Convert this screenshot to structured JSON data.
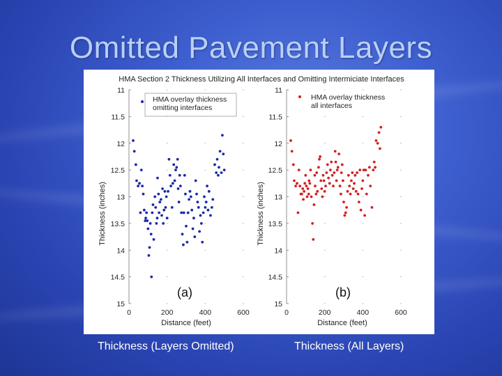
{
  "slide": {
    "title": "Omitted Pavement Layers",
    "caption_left": "Thickness (Layers Omitted)",
    "caption_right": "Thickness (All Layers)"
  },
  "colors": {
    "series_a": "#1a2aa8",
    "series_b": "#d42020"
  },
  "chart_data": [
    {
      "type": "scatter",
      "title": "HMA Section 2 Thickness Utilizing All Interfaces and Omitting Intermiciate Interfaces",
      "panel_label": "(a)",
      "xlabel": "Distance (feet)",
      "ylabel": "Thickness (inches)",
      "xlim": [
        0,
        600
      ],
      "ylim": [
        11,
        15
      ],
      "y_inverted": true,
      "xticks": [
        "0",
        "200",
        "400",
        "600"
      ],
      "yticks": [
        "11",
        "11.5",
        "12",
        "12.5",
        "13",
        "13.5",
        "14",
        "14.5",
        "15"
      ],
      "legend_position": "top-right",
      "series": [
        {
          "name": "HMA overlay thickness omitting interfaces",
          "points": [
            [
              22,
              11.95
            ],
            [
              28,
              12.15
            ],
            [
              36,
              12.4
            ],
            [
              40,
              12.7
            ],
            [
              48,
              12.8
            ],
            [
              55,
              12.75
            ],
            [
              60,
              13.3
            ],
            [
              65,
              12.5
            ],
            [
              70,
              12.8
            ],
            [
              75,
              12.95
            ],
            [
              80,
              13.25
            ],
            [
              85,
              13.45
            ],
            [
              88,
              13.4
            ],
            [
              92,
              13.3
            ],
            [
              96,
              13.45
            ],
            [
              100,
              13.6
            ],
            [
              104,
              14.1
            ],
            [
              108,
              13.95
            ],
            [
              112,
              13.5
            ],
            [
              116,
              13.7
            ],
            [
              118,
              14.5
            ],
            [
              122,
              13.3
            ],
            [
              126,
              13.15
            ],
            [
              130,
              13.8
            ],
            [
              136,
              13.0
            ],
            [
              140,
              13.2
            ],
            [
              144,
              13.5
            ],
            [
              148,
              13.4
            ],
            [
              150,
              12.65
            ],
            [
              155,
              12.95
            ],
            [
              158,
              13.3
            ],
            [
              162,
              13.1
            ],
            [
              168,
              13.05
            ],
            [
              172,
              13.35
            ],
            [
              176,
              12.85
            ],
            [
              180,
              13.5
            ],
            [
              184,
              13.25
            ],
            [
              188,
              12.9
            ],
            [
              192,
              13.2
            ],
            [
              196,
              13.0
            ],
            [
              200,
              13.4
            ],
            [
              205,
              12.9
            ],
            [
              210,
              12.3
            ],
            [
              215,
              12.6
            ],
            [
              220,
              12.8
            ],
            [
              226,
              13.2
            ],
            [
              230,
              12.75
            ],
            [
              235,
              12.4
            ],
            [
              240,
              12.7
            ],
            [
              245,
              12.5
            ],
            [
              250,
              12.45
            ],
            [
              255,
              12.3
            ],
            [
              258,
              12.85
            ],
            [
              262,
              13.1
            ],
            [
              266,
              12.6
            ],
            [
              270,
              12.8
            ],
            [
              275,
              13.3
            ],
            [
              280,
              13.7
            ],
            [
              285,
              13.9
            ],
            [
              288,
              13.3
            ],
            [
              292,
              12.6
            ],
            [
              296,
              12.95
            ],
            [
              300,
              13.55
            ],
            [
              305,
              13.85
            ],
            [
              310,
              13.3
            ],
            [
              315,
              13.05
            ],
            [
              320,
              12.9
            ],
            [
              325,
              13.0
            ],
            [
              330,
              13.25
            ],
            [
              335,
              13.6
            ],
            [
              340,
              13.4
            ],
            [
              345,
              13.75
            ],
            [
              350,
              12.7
            ],
            [
              355,
              12.95
            ],
            [
              360,
              13.1
            ],
            [
              365,
              13.2
            ],
            [
              370,
              13.65
            ],
            [
              375,
              13.35
            ],
            [
              380,
              13.5
            ],
            [
              385,
              13.85
            ],
            [
              390,
              13.3
            ],
            [
              395,
              13.0
            ],
            [
              400,
              13.2
            ],
            [
              405,
              13.1
            ],
            [
              410,
              12.8
            ],
            [
              415,
              13.25
            ],
            [
              420,
              12.9
            ],
            [
              428,
              13.35
            ],
            [
              435,
              13.2
            ],
            [
              440,
              13.05
            ],
            [
              450,
              12.4
            ],
            [
              458,
              12.55
            ],
            [
              463,
              12.3
            ],
            [
              468,
              12.6
            ],
            [
              472,
              12.45
            ],
            [
              478,
              12.15
            ],
            [
              485,
              12.55
            ],
            [
              490,
              11.85
            ],
            [
              495,
              12.2
            ],
            [
              500,
              12.5
            ]
          ]
        }
      ]
    },
    {
      "type": "scatter",
      "panel_label": "(b)",
      "xlabel": "Distance (feet)",
      "ylabel": "Thickness (inches)",
      "xlim": [
        0,
        600
      ],
      "ylim": [
        11,
        15
      ],
      "y_inverted": true,
      "xticks": [
        "0",
        "200",
        "400",
        "600"
      ],
      "yticks": [
        "11",
        "11.5",
        "12",
        "12.5",
        "13",
        "13.5",
        "14",
        "14.5",
        "15"
      ],
      "legend_position": "top-right",
      "series": [
        {
          "name": "HMA overlay thickness all interfaces",
          "points": [
            [
              22,
              11.95
            ],
            [
              28,
              12.15
            ],
            [
              36,
              12.4
            ],
            [
              40,
              12.7
            ],
            [
              48,
              12.8
            ],
            [
              55,
              12.75
            ],
            [
              60,
              13.3
            ],
            [
              65,
              12.5
            ],
            [
              70,
              12.8
            ],
            [
              75,
              12.95
            ],
            [
              80,
              12.95
            ],
            [
              85,
              12.85
            ],
            [
              88,
              13.05
            ],
            [
              92,
              12.9
            ],
            [
              96,
              12.75
            ],
            [
              100,
              12.6
            ],
            [
              104,
              12.8
            ],
            [
              108,
              13.0
            ],
            [
              112,
              12.85
            ],
            [
              116,
              12.95
            ],
            [
              118,
              12.7
            ],
            [
              122,
              12.75
            ],
            [
              126,
              12.5
            ],
            [
              130,
              13.0
            ],
            [
              136,
              13.5
            ],
            [
              140,
              13.8
            ],
            [
              144,
              13.15
            ],
            [
              148,
              12.6
            ],
            [
              150,
              12.8
            ],
            [
              155,
              12.95
            ],
            [
              158,
              12.55
            ],
            [
              162,
              12.9
            ],
            [
              168,
              12.45
            ],
            [
              172,
              12.3
            ],
            [
              176,
              12.25
            ],
            [
              180,
              12.7
            ],
            [
              184,
              12.85
            ],
            [
              188,
              13.0
            ],
            [
              192,
              12.6
            ],
            [
              196,
              12.7
            ],
            [
              200,
              12.9
            ],
            [
              205,
              12.8
            ],
            [
              210,
              12.55
            ],
            [
              215,
              12.4
            ],
            [
              220,
              12.65
            ],
            [
              226,
              12.75
            ],
            [
              230,
              12.5
            ],
            [
              235,
              12.35
            ],
            [
              240,
              12.6
            ],
            [
              245,
              12.8
            ],
            [
              250,
              12.55
            ],
            [
              255,
              12.15
            ],
            [
              258,
              12.35
            ],
            [
              262,
              12.7
            ],
            [
              266,
              12.5
            ],
            [
              270,
              12.45
            ],
            [
              275,
              12.2
            ],
            [
              280,
              12.8
            ],
            [
              285,
              12.95
            ],
            [
              288,
              12.55
            ],
            [
              292,
              12.4
            ],
            [
              296,
              12.7
            ],
            [
              300,
              13.1
            ],
            [
              305,
              13.35
            ],
            [
              310,
              13.3
            ],
            [
              315,
              13.2
            ],
            [
              320,
              12.9
            ],
            [
              325,
              12.6
            ],
            [
              330,
              12.8
            ],
            [
              335,
              12.95
            ],
            [
              340,
              12.7
            ],
            [
              345,
              12.55
            ],
            [
              350,
              12.85
            ],
            [
              355,
              12.75
            ],
            [
              360,
              12.6
            ],
            [
              365,
              12.9
            ],
            [
              370,
              12.55
            ],
            [
              375,
              12.95
            ],
            [
              380,
              13.1
            ],
            [
              385,
              12.5
            ],
            [
              390,
              13.25
            ],
            [
              395,
              12.85
            ],
            [
              400,
              12.7
            ],
            [
              405,
              12.5
            ],
            [
              410,
              13.35
            ],
            [
              415,
              12.5
            ],
            [
              420,
              12.95
            ],
            [
              428,
              12.6
            ],
            [
              435,
              12.45
            ],
            [
              440,
              12.8
            ],
            [
              448,
              13.2
            ],
            [
              455,
              12.5
            ],
            [
              460,
              12.35
            ],
            [
              465,
              12.45
            ],
            [
              470,
              11.95
            ],
            [
              478,
              12.0
            ],
            [
              485,
              11.8
            ],
            [
              490,
              12.1
            ],
            [
              495,
              11.7
            ]
          ]
        }
      ]
    }
  ]
}
